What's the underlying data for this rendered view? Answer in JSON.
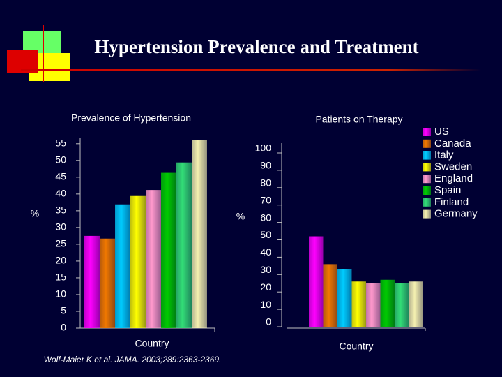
{
  "title": "Hypertension Prevalence and Treatment",
  "source": "Wolf-Maier K et al. JAMA. 2003;289:2363-2369.",
  "chart_data": [
    {
      "type": "bar",
      "title": "Prevalence of Hypertension",
      "ylabel": "%",
      "xlabel": "Country",
      "ylim": [
        0,
        56
      ],
      "yticks": [
        0,
        5,
        10,
        15,
        20,
        25,
        30,
        35,
        40,
        45,
        50,
        55
      ],
      "series": [
        {
          "name": "US",
          "color": "#ff00ff",
          "values": [
            27.5
          ]
        },
        {
          "name": "Canada",
          "color": "#f07800",
          "values": [
            26.7
          ]
        },
        {
          "name": "Italy",
          "color": "#00ccff",
          "values": [
            36.9
          ]
        },
        {
          "name": "Sweden",
          "color": "#ffff00",
          "values": [
            39.4
          ]
        },
        {
          "name": "England",
          "color": "#ff99cc",
          "values": [
            41.2
          ]
        },
        {
          "name": "Spain",
          "color": "#00cc00",
          "values": [
            46.3
          ]
        },
        {
          "name": "Finland",
          "color": "#33dd77",
          "values": [
            49.4
          ]
        },
        {
          "name": "Germany",
          "color": "#f4f0b0",
          "values": [
            56
          ]
        }
      ]
    },
    {
      "type": "bar",
      "title": "Patients on Therapy",
      "ylabel": "%",
      "xlabel": "Country",
      "ylim": [
        0,
        100
      ],
      "yticks": [
        0,
        10,
        20,
        30,
        40,
        50,
        60,
        70,
        80,
        90,
        100
      ],
      "series": [
        {
          "color": "#ff00ff",
          "values": [
            52
          ]
        },
        {
          "color": "#f07800",
          "values": [
            36
          ]
        },
        {
          "color": "#00ccff",
          "values": [
            33
          ]
        },
        {
          "color": "#ffff00",
          "values": [
            26
          ]
        },
        {
          "color": "#ff99cc",
          "values": [
            25
          ]
        },
        {
          "color": "#00cc00",
          "values": [
            27
          ]
        },
        {
          "color": "#33dd77",
          "values": [
            25
          ]
        },
        {
          "color": "#f4f0b0",
          "values": [
            26
          ]
        }
      ]
    }
  ]
}
